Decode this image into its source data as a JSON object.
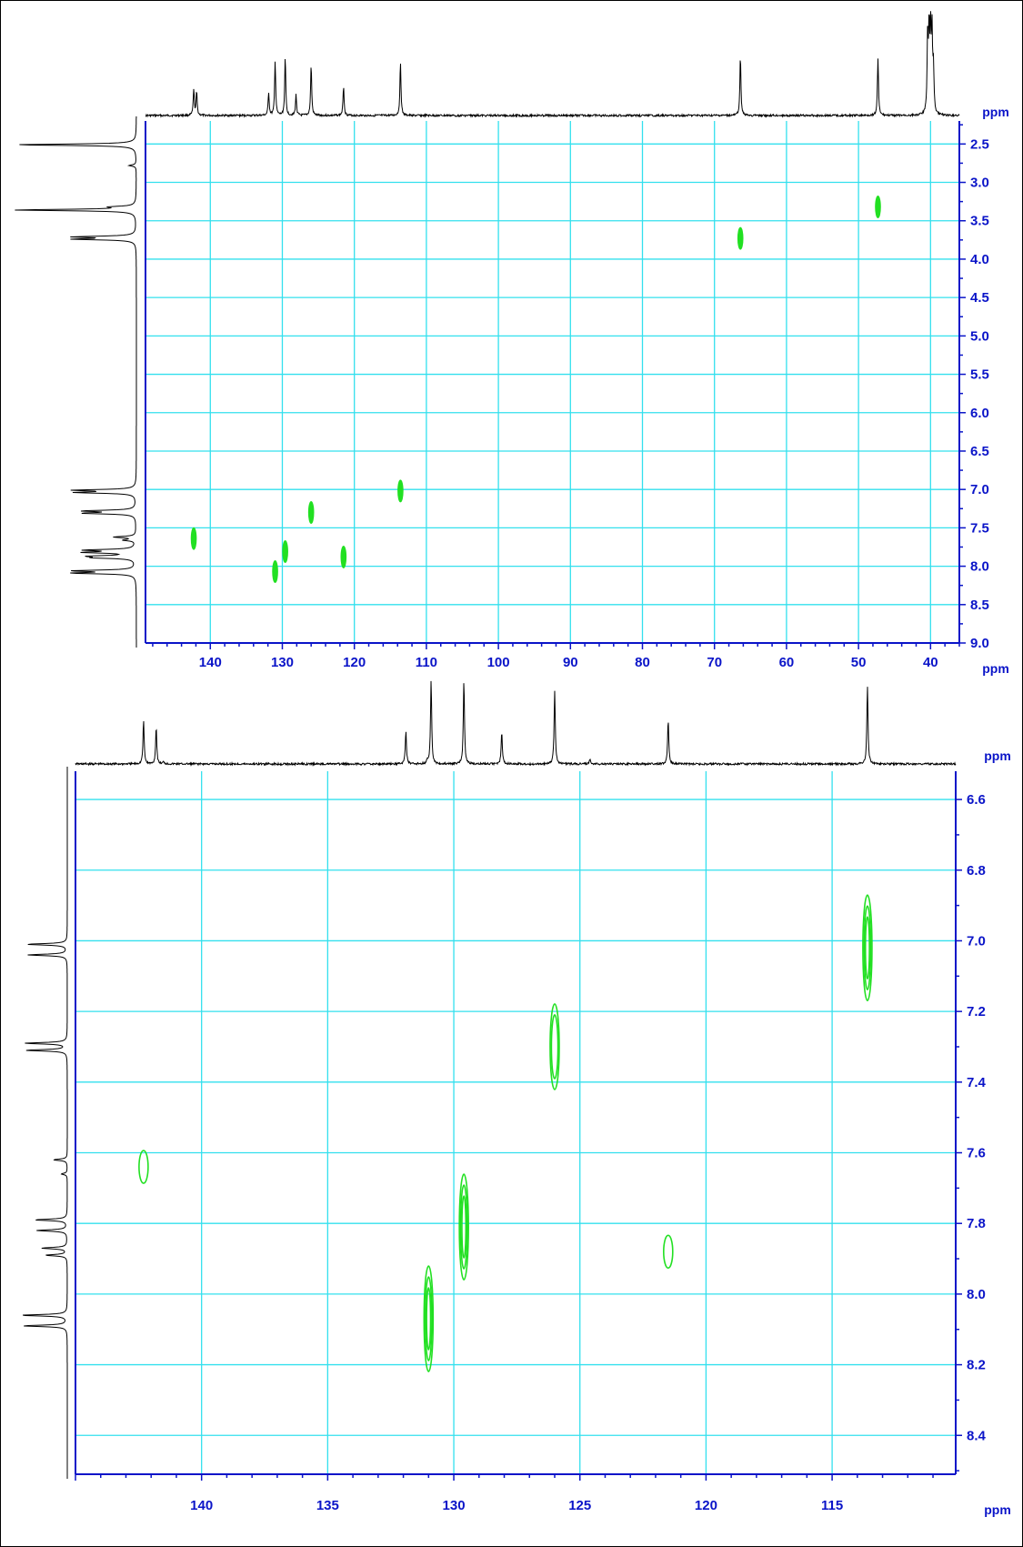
{
  "colors": {
    "grid": "#33e0ee",
    "axis": "#0a14c8",
    "labels": "#0a14c8",
    "contour": "#22e022",
    "trace": "#000000"
  },
  "chart_data": [
    {
      "type": "heatmap",
      "name": "hsqc-full",
      "xunit": "ppm",
      "yunit": "ppm",
      "xlim": [
        149,
        36
      ],
      "ylim": [
        2.2,
        9.0
      ],
      "xticks": [
        140,
        130,
        120,
        110,
        100,
        90,
        80,
        70,
        60,
        50,
        40
      ],
      "yticks": [
        2.5,
        3.0,
        3.5,
        4.0,
        4.5,
        5.0,
        5.5,
        6.0,
        6.5,
        7.0,
        7.5,
        8.0,
        8.5,
        9.0
      ],
      "grid": true,
      "cross_peaks": [
        {
          "x": 142.3,
          "y": 7.64
        },
        {
          "x": 131.0,
          "y": 8.07
        },
        {
          "x": 129.6,
          "y": 7.81
        },
        {
          "x": 126.0,
          "y": 7.3
        },
        {
          "x": 121.5,
          "y": 7.88
        },
        {
          "x": 113.6,
          "y": 7.02
        },
        {
          "x": 66.4,
          "y": 3.73
        },
        {
          "x": 47.3,
          "y": 3.32
        }
      ],
      "top_projection_peaks": [
        {
          "x": 142.3,
          "h": 0.42
        },
        {
          "x": 141.9,
          "h": 0.38
        },
        {
          "x": 131.9,
          "h": 0.37
        },
        {
          "x": 131.0,
          "h": 0.88
        },
        {
          "x": 129.6,
          "h": 0.93
        },
        {
          "x": 128.1,
          "h": 0.33
        },
        {
          "x": 126.0,
          "h": 0.82
        },
        {
          "x": 121.5,
          "h": 0.48
        },
        {
          "x": 113.6,
          "h": 0.86
        },
        {
          "x": 66.4,
          "h": 0.96
        },
        {
          "x": 47.3,
          "h": 0.92
        },
        {
          "x": 40.4,
          "h": 1.25
        },
        {
          "x": 40.2,
          "h": 1.25
        },
        {
          "x": 40.0,
          "h": 1.25
        },
        {
          "x": 39.8,
          "h": 1.25
        },
        {
          "x": 39.6,
          "h": 0.7
        }
      ],
      "left_projection_peaks": [
        {
          "y": 2.51,
          "h": 1.0
        },
        {
          "y": 2.78,
          "h": 0.06
        },
        {
          "y": 3.32,
          "h": 0.18
        },
        {
          "y": 3.36,
          "h": 1.0
        },
        {
          "y": 3.71,
          "h": 0.49
        },
        {
          "y": 3.74,
          "h": 0.49
        },
        {
          "y": 7.01,
          "h": 0.49
        },
        {
          "y": 7.04,
          "h": 0.47
        },
        {
          "y": 7.28,
          "h": 0.42
        },
        {
          "y": 7.31,
          "h": 0.42
        },
        {
          "y": 7.62,
          "h": 0.18
        },
        {
          "y": 7.66,
          "h": 0.1
        },
        {
          "y": 7.79,
          "h": 0.4
        },
        {
          "y": 7.82,
          "h": 0.4
        },
        {
          "y": 7.87,
          "h": 0.34
        },
        {
          "y": 7.89,
          "h": 0.3
        },
        {
          "y": 8.06,
          "h": 0.5
        },
        {
          "y": 8.09,
          "h": 0.5
        }
      ]
    },
    {
      "type": "heatmap",
      "name": "hsqc-aromatic-expansion",
      "xunit": "ppm",
      "yunit": "ppm",
      "xlim": [
        145,
        110.1
      ],
      "ylim": [
        6.52,
        8.51
      ],
      "xticks": [
        140,
        135,
        130,
        125,
        120,
        115
      ],
      "yticks": [
        6.6,
        6.8,
        7.0,
        7.2,
        7.4,
        7.6,
        7.8,
        8.0,
        8.2,
        8.4
      ],
      "grid": true,
      "cross_peaks": [
        {
          "x": 142.3,
          "y": 7.64,
          "levels": 1
        },
        {
          "x": 131.0,
          "y": 8.07,
          "levels": 3
        },
        {
          "x": 129.6,
          "y": 7.81,
          "levels": 3
        },
        {
          "x": 126.0,
          "y": 7.3,
          "levels": 2
        },
        {
          "x": 121.5,
          "y": 7.88,
          "levels": 1
        },
        {
          "x": 113.6,
          "y": 7.02,
          "levels": 3
        }
      ],
      "top_projection_peaks": [
        {
          "x": 142.3,
          "h": 0.52
        },
        {
          "x": 141.8,
          "h": 0.44
        },
        {
          "x": 141.5,
          "h": 0.03
        },
        {
          "x": 131.9,
          "h": 0.4
        },
        {
          "x": 131.05,
          "h": 0.04
        },
        {
          "x": 130.9,
          "h": 1.0
        },
        {
          "x": 129.6,
          "h": 1.0
        },
        {
          "x": 128.1,
          "h": 0.38
        },
        {
          "x": 126.0,
          "h": 0.88
        },
        {
          "x": 124.6,
          "h": 0.06
        },
        {
          "x": 121.5,
          "h": 0.52
        },
        {
          "x": 113.6,
          "h": 0.94
        }
      ],
      "left_projection_peaks": [
        {
          "y": 7.01,
          "h": 0.82
        },
        {
          "y": 7.04,
          "h": 0.8
        },
        {
          "y": 7.29,
          "h": 0.86
        },
        {
          "y": 7.31,
          "h": 0.84
        },
        {
          "y": 7.62,
          "h": 0.28
        },
        {
          "y": 7.66,
          "h": 0.12
        },
        {
          "y": 7.79,
          "h": 0.66
        },
        {
          "y": 7.82,
          "h": 0.62
        },
        {
          "y": 7.87,
          "h": 0.52
        },
        {
          "y": 7.89,
          "h": 0.44
        },
        {
          "y": 8.06,
          "h": 0.94
        },
        {
          "y": 8.09,
          "h": 0.9
        }
      ]
    }
  ]
}
